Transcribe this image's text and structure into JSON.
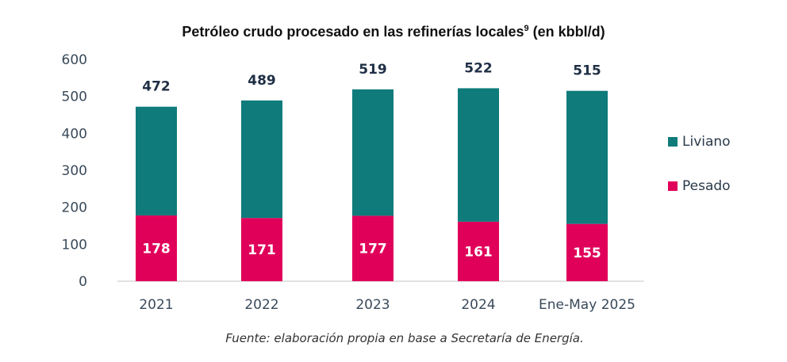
{
  "chart_data": {
    "type": "bar",
    "stacked": true,
    "title": "Petróleo crudo procesado en las refinerías locales",
    "title_superscript": "9",
    "title_suffix": " (en kbbl/d)",
    "xlabel": "",
    "ylabel": "",
    "categories": [
      "2021",
      "2022",
      "2023",
      "2024",
      "Ene-May 2025"
    ],
    "series": [
      {
        "name": "Pesado",
        "color": "#e0005a",
        "values": [
          178,
          171,
          177,
          161,
          155
        ]
      },
      {
        "name": "Liviano",
        "color": "#0f7b7b",
        "values": [
          294,
          318,
          342,
          361,
          360
        ]
      }
    ],
    "totals": [
      472,
      489,
      519,
      522,
      515
    ],
    "ylim": [
      0,
      600
    ],
    "yticks": [
      0,
      100,
      200,
      300,
      400,
      500,
      600
    ],
    "grid": false,
    "legend": {
      "placement": "right",
      "entries": [
        "Liviano",
        "Pesado"
      ]
    },
    "source_note": "Fuente: elaboración propia en base a Secretaría de Energía."
  }
}
